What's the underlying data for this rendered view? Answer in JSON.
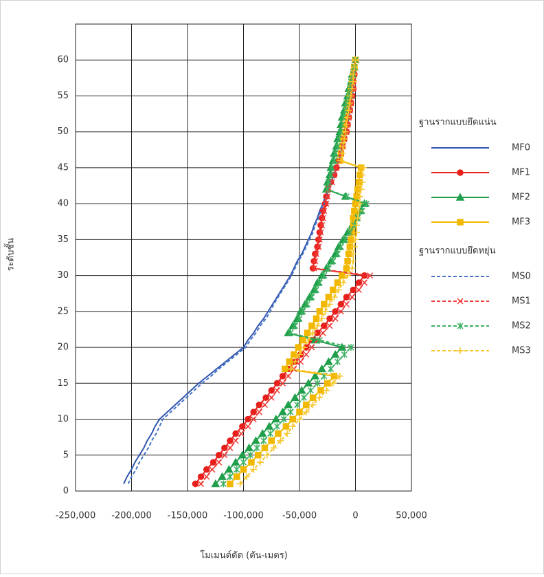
{
  "chart_data": {
    "type": "line",
    "x_label": "โมเมนต์ดัด (ตัน-เมตร)",
    "y_label": "ระดับชั้น",
    "legend_titles": [
      "ฐานรากแบบยึดแน่น",
      "ฐานรากแบบยึดหยุ่น"
    ],
    "xlim": [
      -250000,
      50000
    ],
    "xticks": [
      {
        "value": -250000,
        "label": "-250,000"
      },
      {
        "value": -200000,
        "label": "-200,000"
      },
      {
        "value": -150000,
        "label": "-150,000"
      },
      {
        "value": -100000,
        "label": "-100,000"
      },
      {
        "value": -50000,
        "label": "-50,000"
      },
      0,
      {
        "value": 50000,
        "label": "50,000"
      }
    ],
    "ylim": [
      0,
      65
    ],
    "yticks": [
      0,
      5,
      10,
      15,
      20,
      25,
      30,
      35,
      40,
      45,
      50,
      55,
      60
    ],
    "grid": true,
    "y": [
      1,
      2,
      3,
      4,
      5,
      6,
      7,
      8,
      9,
      10,
      11,
      12,
      13,
      14,
      15,
      16,
      17,
      18,
      19,
      20,
      21,
      22,
      23,
      24,
      25,
      26,
      27,
      28,
      29,
      30,
      31,
      32,
      33,
      34,
      35,
      36,
      37,
      38,
      39,
      40,
      41,
      42,
      43,
      44,
      45,
      46,
      47,
      48,
      49,
      50,
      51,
      52,
      53,
      54,
      55,
      56,
      57,
      58,
      59,
      60
    ],
    "series": [
      {
        "name": "MF0",
        "color": "#2f55b0",
        "marker": "none",
        "dashed": false,
        "values": [
          -207000,
          -204000,
          -200000,
          -197000,
          -193000,
          -189000,
          -186000,
          -182000,
          -179000,
          -175000,
          -168000,
          -161000,
          -154000,
          -147000,
          -140000,
          -132000,
          -124000,
          -116000,
          -108000,
          -100000,
          -96000,
          -91000,
          -87000,
          -82000,
          -78000,
          -74000,
          -70000,
          -66000,
          -62000,
          -58000,
          -55000,
          -52000,
          -48000,
          -45000,
          -42000,
          -39000,
          -37000,
          -34000,
          -32000,
          -29000,
          -27000,
          -24000,
          -22000,
          -19000,
          -17000,
          -15000,
          -13000,
          -12000,
          -10000,
          -8000,
          -7000,
          -6000,
          -5000,
          -4000,
          -3000,
          -2000,
          -2000,
          -1000,
          -1000,
          0
        ]
      },
      {
        "name": "MF1",
        "color": "#e8201c",
        "marker": "circle",
        "dashed": false,
        "values": [
          -143000,
          -138000,
          -133000,
          -127000,
          -122000,
          -117000,
          -112000,
          -107000,
          -101000,
          -96000,
          -91000,
          -86000,
          -80000,
          -75000,
          -70000,
          -65000,
          -60000,
          -54000,
          -49000,
          -44000,
          -39000,
          -34000,
          -28000,
          -23000,
          -18000,
          -13000,
          -8000,
          -2000,
          3000,
          8000,
          -38000,
          -37000,
          -36000,
          -34000,
          -33000,
          -32000,
          -31000,
          -30000,
          -29000,
          -27000,
          -26000,
          -25000,
          -22000,
          -19000,
          -17000,
          -15000,
          -13000,
          -12000,
          -10000,
          -8000,
          -7000,
          -6000,
          -5000,
          -4000,
          -3000,
          -2000,
          -2000,
          -1000,
          -1000,
          0
        ]
      },
      {
        "name": "MF2",
        "color": "#1f9f4a",
        "marker": "triangle",
        "dashed": false,
        "values": [
          -125000,
          -119000,
          -113000,
          -107000,
          -101000,
          -95000,
          -89000,
          -83000,
          -77000,
          -71000,
          -65000,
          -60000,
          -54000,
          -48000,
          -42000,
          -36000,
          -30000,
          -24000,
          -18000,
          -12000,
          -36000,
          -60000,
          -56000,
          -52000,
          -49000,
          -45000,
          -41000,
          -37000,
          -34000,
          -30000,
          -26000,
          -22000,
          -18000,
          -15000,
          -11000,
          -7000,
          -3000,
          0,
          4000,
          8000,
          -9000,
          -26000,
          -25000,
          -23000,
          -22000,
          -20000,
          -19000,
          -17000,
          -16000,
          -14000,
          -13000,
          -12000,
          -10000,
          -9000,
          -7000,
          -6000,
          -4000,
          -3000,
          -1000,
          0
        ]
      },
      {
        "name": "MF3",
        "color": "#f2b800",
        "marker": "square",
        "dashed": false,
        "values": [
          -112000,
          -106000,
          -100000,
          -93000,
          -87000,
          -81000,
          -75000,
          -69000,
          -62000,
          -56000,
          -50000,
          -44000,
          -38000,
          -31000,
          -25000,
          -19000,
          -63000,
          -59000,
          -55000,
          -51000,
          -47000,
          -43000,
          -39000,
          -35000,
          -32000,
          -28000,
          -24000,
          -20000,
          -16000,
          -12000,
          -8000,
          -7000,
          -6000,
          -5000,
          -4000,
          -3000,
          -2000,
          -2000,
          -1000,
          0,
          1000,
          2000,
          3000,
          4000,
          5000,
          -14000,
          -13000,
          -12000,
          -11000,
          -10000,
          -9000,
          -8000,
          -7000,
          -6000,
          -5000,
          -4000,
          -3000,
          -2000,
          -1000,
          0
        ]
      },
      {
        "name": "MS0",
        "color": "#4472c4",
        "marker": "none",
        "dashed": true,
        "values": [
          -203000,
          -200000,
          -196000,
          -193000,
          -189000,
          -185000,
          -182000,
          -178000,
          -175000,
          -172000,
          -165000,
          -158000,
          -151000,
          -144000,
          -137000,
          -129000,
          -122000,
          -114000,
          -106000,
          -98000,
          -94000,
          -89000,
          -85000,
          -80000,
          -76000,
          -73000,
          -69000,
          -65000,
          -61000,
          -57000,
          -54000,
          -51000,
          -47000,
          -44000,
          -41000,
          -38000,
          -36000,
          -33000,
          -31000,
          -28000,
          -26000,
          -24000,
          -22000,
          -19000,
          -17000,
          -15000,
          -13000,
          -12000,
          -10000,
          -8000,
          -7000,
          -6000,
          -5000,
          -4000,
          -3000,
          -2000,
          -2000,
          -1000,
          -1000,
          0
        ]
      },
      {
        "name": "MS1",
        "color": "#ee3a36",
        "marker": "x",
        "dashed": true,
        "values": [
          -138000,
          -133000,
          -128000,
          -122000,
          -117000,
          -112000,
          -107000,
          -102000,
          -96000,
          -91000,
          -86000,
          -81000,
          -75000,
          -70000,
          -65000,
          -60000,
          -55000,
          -49000,
          -44000,
          -39000,
          -34000,
          -29000,
          -23000,
          -18000,
          -13000,
          -8000,
          -3000,
          3000,
          8000,
          13000,
          -37000,
          -36000,
          -35000,
          -33000,
          -32000,
          -31000,
          -30000,
          -29000,
          -28000,
          -26000,
          -25000,
          -24000,
          -21000,
          -19000,
          -17000,
          -15000,
          -13000,
          -11000,
          -10000,
          -8000,
          -7000,
          -6000,
          -5000,
          -4000,
          -3000,
          -2000,
          -2000,
          -1000,
          -1000,
          0
        ]
      },
      {
        "name": "MS2",
        "color": "#3ab060",
        "marker": "asterisk",
        "dashed": true,
        "values": [
          -118000,
          -112000,
          -106000,
          -100000,
          -94000,
          -88000,
          -82000,
          -76000,
          -70000,
          -64000,
          -58000,
          -52000,
          -46000,
          -40000,
          -34000,
          -28000,
          -22000,
          -16000,
          -10000,
          -4000,
          -32000,
          -58000,
          -54000,
          -50000,
          -47000,
          -43000,
          -39000,
          -35000,
          -32000,
          -28000,
          -24000,
          -20000,
          -16000,
          -13000,
          -9000,
          -5000,
          -1000,
          2000,
          6000,
          10000,
          -8000,
          -25000,
          -24000,
          -22000,
          -21000,
          -19000,
          -18000,
          -16000,
          -15000,
          -13000,
          -12000,
          -11000,
          -9000,
          -8000,
          -6000,
          -5000,
          -4000,
          -2000,
          -1000,
          0
        ]
      },
      {
        "name": "MS3",
        "color": "#f7c62a",
        "marker": "plus",
        "dashed": true,
        "values": [
          -103000,
          -97000,
          -91000,
          -85000,
          -79000,
          -73000,
          -67000,
          -61000,
          -56000,
          -50000,
          -44000,
          -38000,
          -32000,
          -26000,
          -20000,
          -14000,
          -58000,
          -54000,
          -50000,
          -46000,
          -42000,
          -38000,
          -34000,
          -30000,
          -27000,
          -23000,
          -19000,
          -15000,
          -11000,
          -7000,
          -3000,
          -2000,
          -2000,
          -1000,
          0,
          1000,
          1000,
          2000,
          3000,
          4000,
          4000,
          5000,
          6000,
          6000,
          7000,
          -13000,
          -12000,
          -11000,
          -10000,
          -9000,
          -8000,
          -7000,
          -6000,
          -5000,
          -4000,
          -3000,
          -2000,
          -2000,
          -1000,
          0
        ]
      }
    ]
  }
}
